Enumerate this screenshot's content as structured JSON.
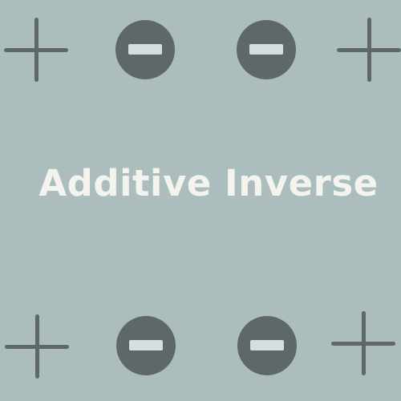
{
  "title": "Additive Inverse",
  "colors": {
    "background": "#abbdbc",
    "symbol": "#5f6869",
    "minus_bar": "#d8dedd",
    "title_text": "#f4f3ee"
  },
  "icons": {
    "top_row": [
      "plus-icon",
      "minus-icon",
      "minus-icon",
      "plus-icon"
    ],
    "bottom_row": [
      "plus-icon",
      "minus-icon",
      "minus-icon",
      "plus-icon"
    ]
  }
}
